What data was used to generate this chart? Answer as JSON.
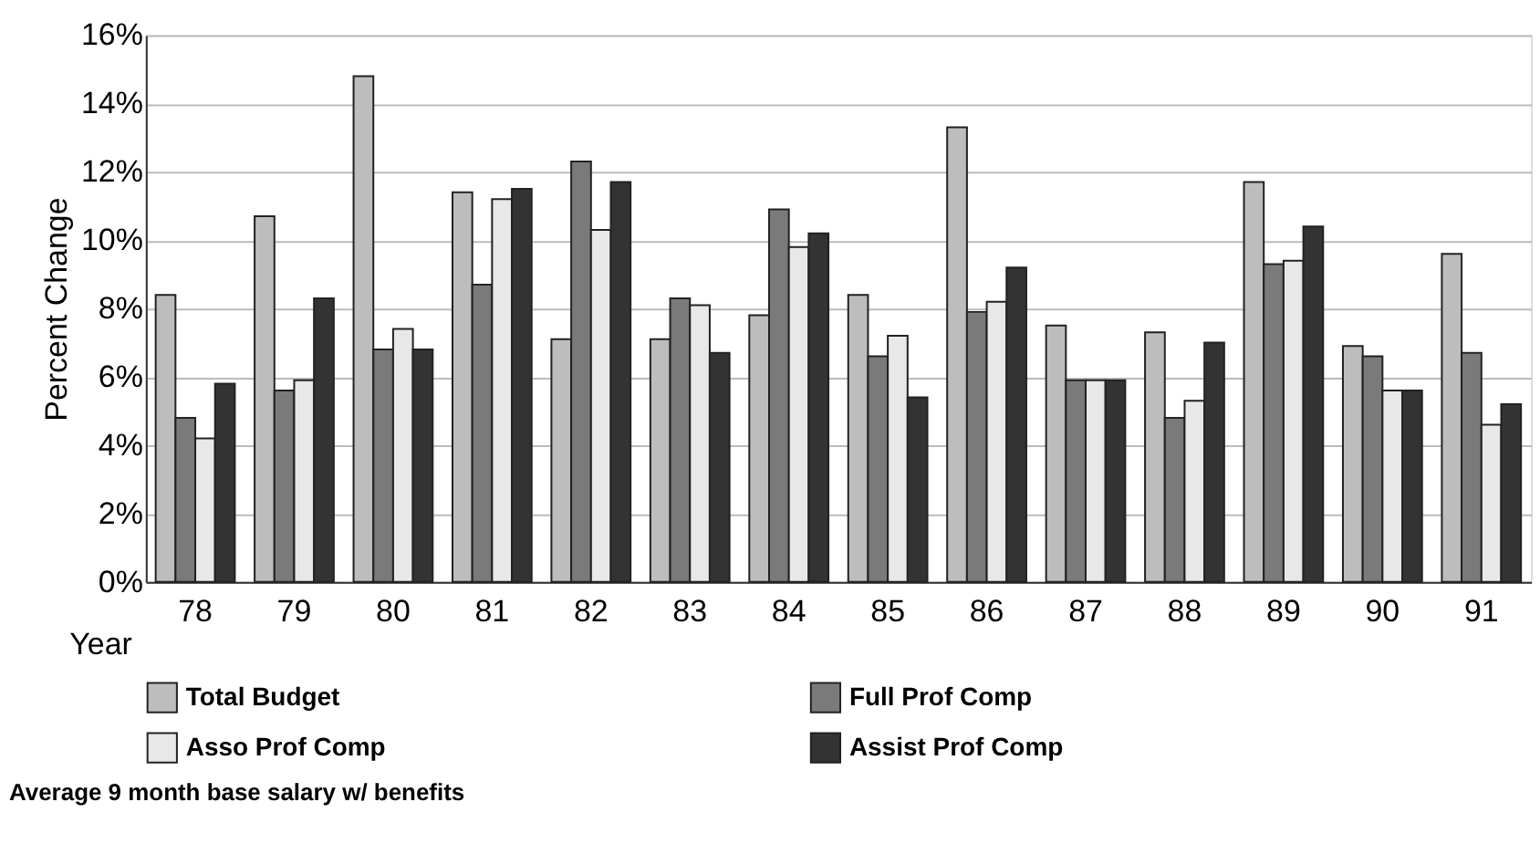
{
  "chart_data": {
    "type": "bar",
    "xlabel": "Year",
    "ylabel": "Percent Change",
    "categories": [
      "78",
      "79",
      "80",
      "81",
      "82",
      "83",
      "84",
      "85",
      "86",
      "87",
      "88",
      "89",
      "90",
      "91"
    ],
    "series": [
      {
        "name": "Total Budget",
        "color": "#bdbdbd",
        "values": [
          8.4,
          10.7,
          14.8,
          11.4,
          7.1,
          7.1,
          7.8,
          8.4,
          13.3,
          7.5,
          7.3,
          11.7,
          6.9,
          9.6
        ]
      },
      {
        "name": "Full Prof Comp",
        "color": "#7a7a7a",
        "values": [
          4.8,
          5.6,
          6.8,
          8.7,
          12.3,
          8.3,
          10.9,
          6.6,
          7.9,
          5.9,
          4.8,
          9.3,
          6.6,
          6.7
        ]
      },
      {
        "name": "Asso Prof Comp",
        "color": "#e8e8e8",
        "values": [
          4.2,
          5.9,
          7.4,
          11.2,
          10.3,
          8.1,
          9.8,
          7.2,
          8.2,
          5.9,
          5.3,
          9.4,
          5.6,
          4.6
        ]
      },
      {
        "name": "Assist Prof Comp",
        "color": "#333333",
        "values": [
          5.8,
          8.3,
          6.8,
          11.5,
          11.7,
          6.7,
          10.2,
          5.4,
          9.2,
          5.9,
          7.0,
          10.4,
          5.6,
          5.2
        ]
      }
    ],
    "ylim": [
      0,
      16
    ],
    "yticks": [
      {
        "value": 0,
        "label": "0%"
      },
      {
        "value": 2,
        "label": "2%"
      },
      {
        "value": 4,
        "label": "4%"
      },
      {
        "value": 6,
        "label": "6%"
      },
      {
        "value": 8,
        "label": "8%"
      },
      {
        "value": 10,
        "label": "10%"
      },
      {
        "value": 12,
        "label": "12%"
      },
      {
        "value": 14,
        "label": "14%"
      },
      {
        "value": 16,
        "label": "16%"
      }
    ],
    "grid": "y",
    "legend": "bottom",
    "annotations": [
      "Average 9 month base salary w/ benefits"
    ]
  }
}
